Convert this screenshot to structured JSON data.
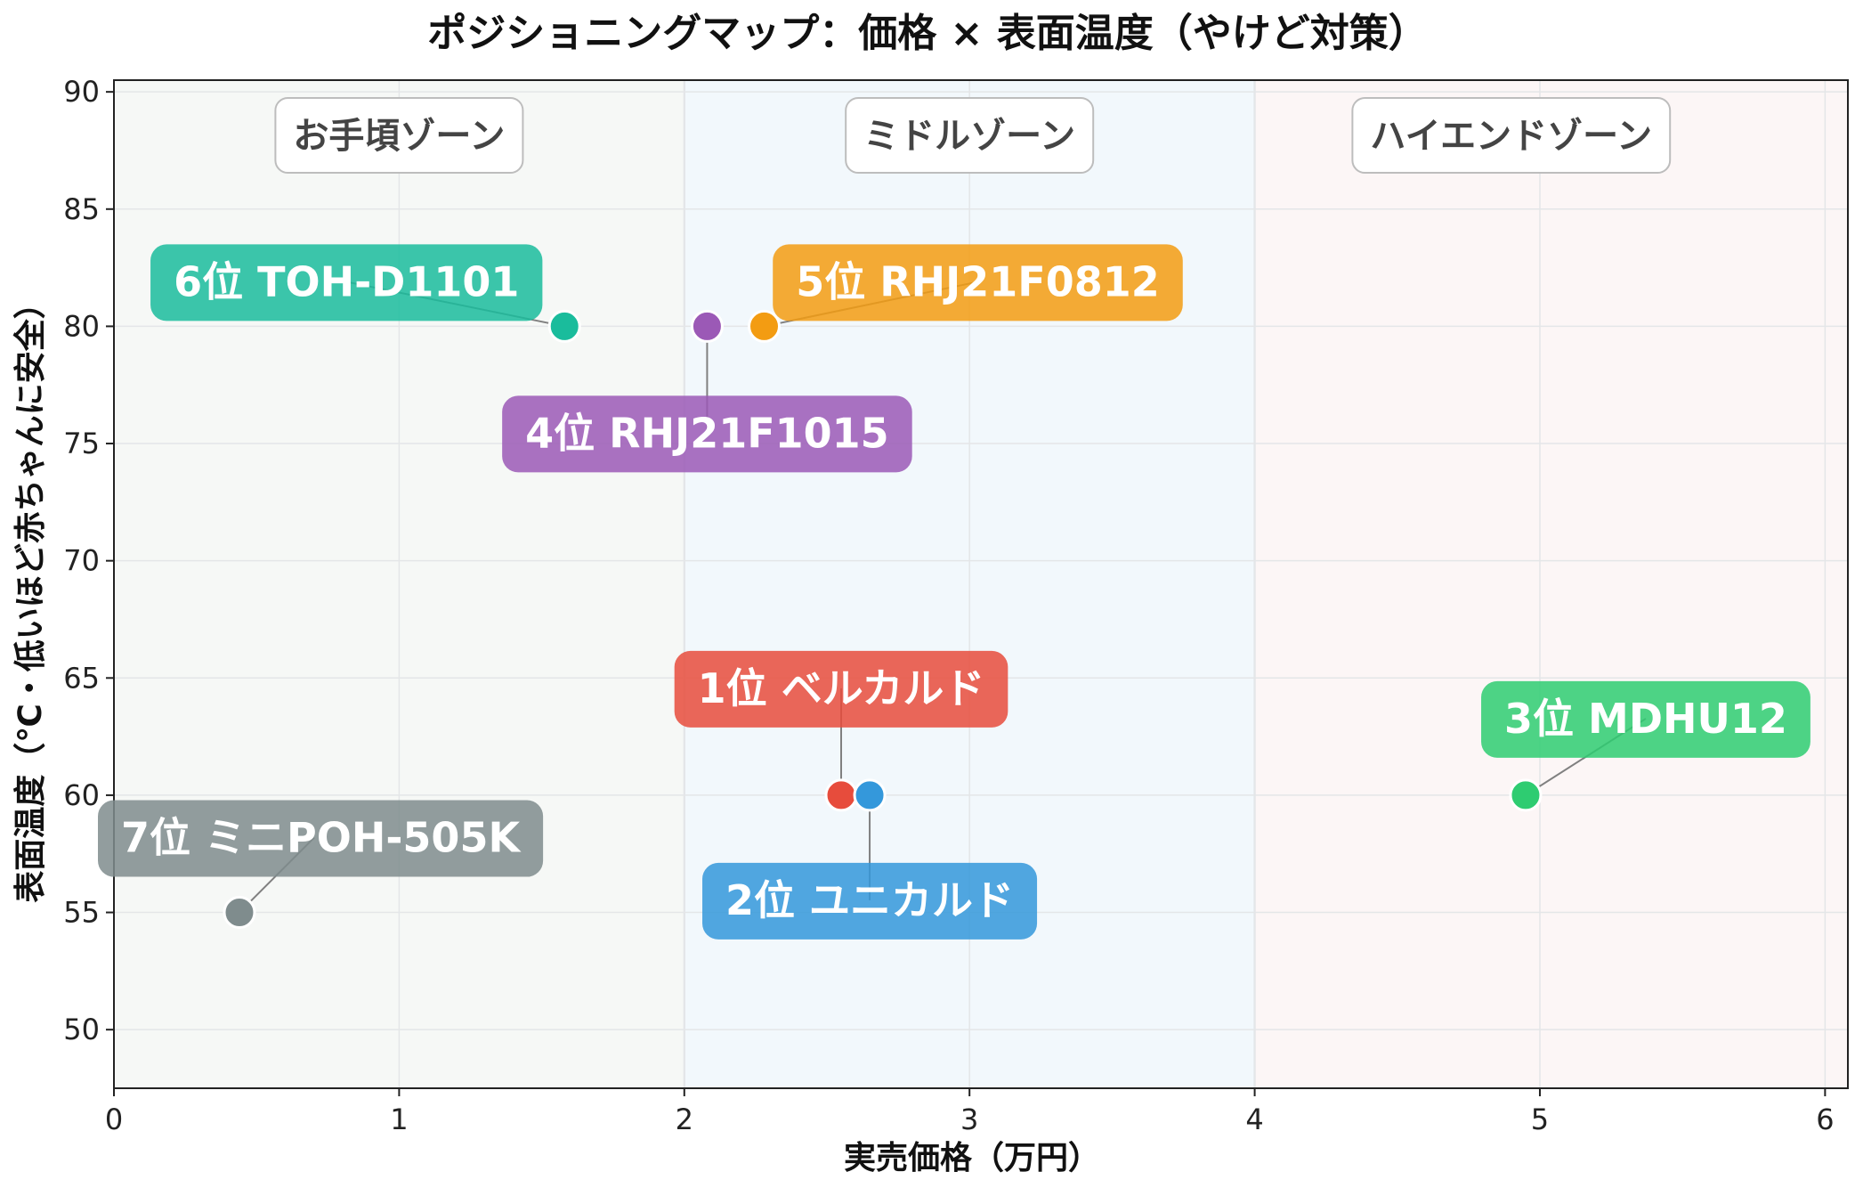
{
  "chart_data": {
    "type": "scatter",
    "title": "ポジショニングマップ：価格 × 表面温度（やけど対策）",
    "xlabel": "実売価格（万円）",
    "ylabel": "表面温度（℃・低いほど赤ちゃんに安全）",
    "xlim": [
      0,
      6.08
    ],
    "ylim": [
      47.5,
      90.5
    ],
    "xticks": [
      0,
      1,
      2,
      3,
      4,
      5,
      6
    ],
    "yticks": [
      50,
      55,
      60,
      65,
      70,
      75,
      80,
      85,
      90
    ],
    "grid": true,
    "zones": [
      {
        "label": "お手頃ゾーン",
        "x_range": [
          0,
          2
        ],
        "color": "#f6f8f6"
      },
      {
        "label": "ミドルゾーン",
        "x_range": [
          2,
          4
        ],
        "color": "#f2f8fc"
      },
      {
        "label": "ハイエンドゾーン",
        "x_range": [
          4,
          6.08
        ],
        "color": "#fcf6f6"
      }
    ],
    "points": [
      {
        "label": "1位 ベルカルド",
        "x": 2.55,
        "y": 60,
        "color": "#e74c3c"
      },
      {
        "label": "2位 ユニカルド",
        "x": 2.65,
        "y": 60,
        "color": "#3498db"
      },
      {
        "label": "3位 MDHU12",
        "x": 4.95,
        "y": 60,
        "color": "#2ecc71"
      },
      {
        "label": "4位 RHJ21F1015",
        "x": 2.08,
        "y": 80,
        "color": "#9b59b6"
      },
      {
        "label": "5位 RHJ21F0812",
        "x": 2.28,
        "y": 80,
        "color": "#f39c12"
      },
      {
        "label": "6位 TOH-D1101",
        "x": 1.58,
        "y": 80,
        "color": "#1abc9c"
      },
      {
        "label": "7位 ミニPOH-505K",
        "x": 0.44,
        "y": 55,
        "color": "#7f8c8d"
      }
    ]
  }
}
